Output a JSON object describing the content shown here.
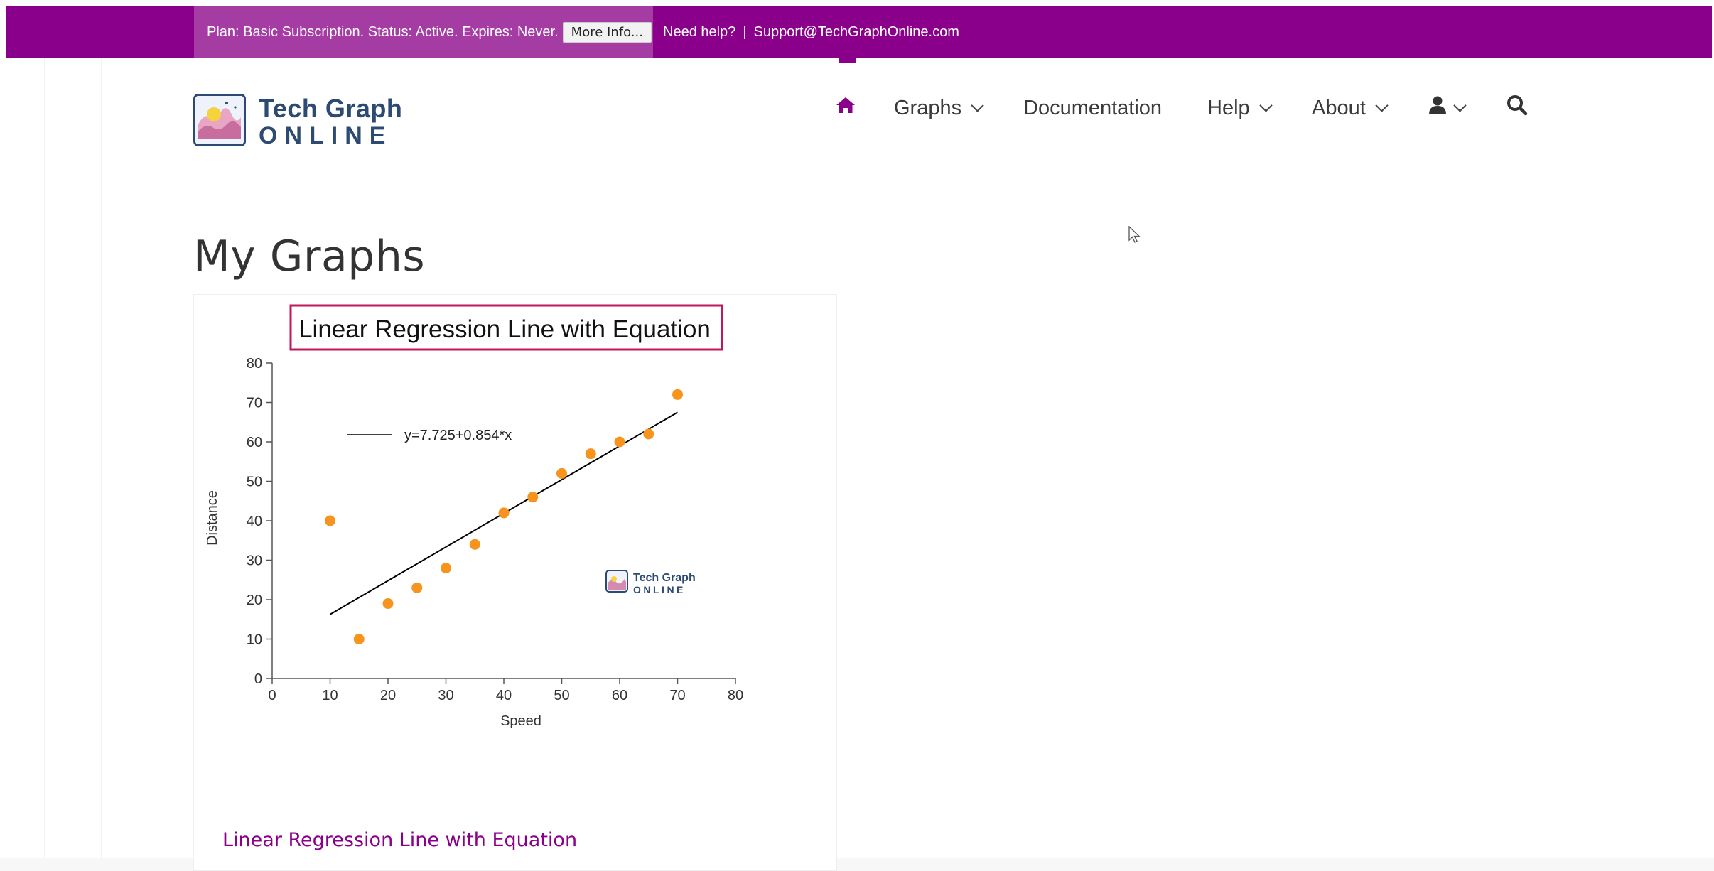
{
  "topbar": {
    "plan_text": "Plan: Basic Subscription. Status: Active. Expires: Never.",
    "more_info_label": "More Info...",
    "need_help": "Need help?",
    "separator": "|",
    "support_email": "Support@TechGraphOnline.com",
    "color": "#8a008a"
  },
  "logo": {
    "word1": "Tech Graph",
    "word2": "ONLINE"
  },
  "nav": {
    "home_icon": "home-icon",
    "items": [
      {
        "label": "Graphs",
        "has_dropdown": true
      },
      {
        "label": "Documentation",
        "has_dropdown": false
      },
      {
        "label": "Help",
        "has_dropdown": true
      },
      {
        "label": "About",
        "has_dropdown": true
      }
    ],
    "user_icon": "user-icon",
    "search_icon": "search-icon",
    "accent": "#8a008a"
  },
  "page": {
    "title": "My Graphs"
  },
  "card": {
    "link_text": "Linear Regression Line with Equation",
    "watermark_word1": "Tech Graph",
    "watermark_word2": "ONLINE"
  },
  "chart_data": {
    "type": "scatter",
    "title": "Linear Regression Line with Equation",
    "xlabel": "Speed",
    "ylabel": "Distance",
    "xlim": [
      0,
      80
    ],
    "ylim": [
      0,
      80
    ],
    "xticks": [
      0,
      10,
      20,
      30,
      40,
      50,
      60,
      70,
      80
    ],
    "yticks": [
      0,
      10,
      20,
      30,
      40,
      50,
      60,
      70,
      80
    ],
    "grid": false,
    "legend_placement": "top-left",
    "points": [
      {
        "x": 10,
        "y": 40
      },
      {
        "x": 15,
        "y": 10
      },
      {
        "x": 20,
        "y": 19
      },
      {
        "x": 25,
        "y": 23
      },
      {
        "x": 30,
        "y": 28
      },
      {
        "x": 35,
        "y": 34
      },
      {
        "x": 40,
        "y": 42
      },
      {
        "x": 45,
        "y": 46
      },
      {
        "x": 50,
        "y": 52
      },
      {
        "x": 55,
        "y": 57
      },
      {
        "x": 60,
        "y": 60
      },
      {
        "x": 65,
        "y": 62
      },
      {
        "x": 70,
        "y": 72
      }
    ],
    "regression": {
      "label": "y=7.725+0.854*x",
      "intercept": 7.725,
      "slope": 0.854,
      "x_range": [
        10,
        70
      ]
    },
    "point_color": "#f7941d",
    "line_color": "#000000",
    "title_border_color": "#c2185b"
  }
}
